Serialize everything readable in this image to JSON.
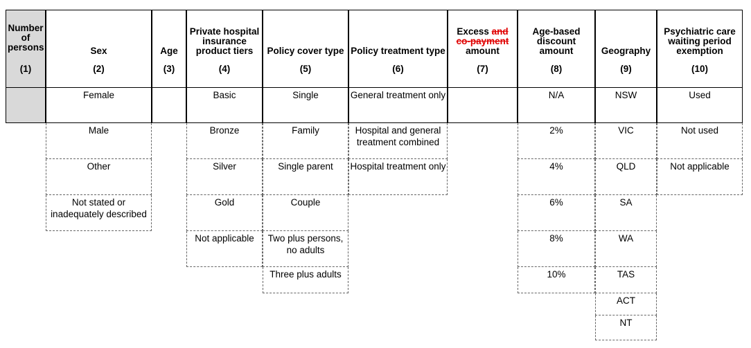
{
  "columns": [
    {
      "title": "Number of persons",
      "number": "(1)"
    },
    {
      "title": "Sex",
      "number": "(2)"
    },
    {
      "title": "Age",
      "number": "(3)"
    },
    {
      "title": "Private hospital insurance product tiers",
      "number": "(4)"
    },
    {
      "title": "Policy cover type",
      "number": "(5)"
    },
    {
      "title": "Policy treatment type",
      "number": "(6)"
    },
    {
      "title_pre": "Excess ",
      "title_strike": "and co-payment",
      "title_post": " amount",
      "number": "(7)"
    },
    {
      "title": "Age-based discount amount",
      "number": "(8)"
    },
    {
      "title": "Geography",
      "number": "(9)"
    },
    {
      "title": "Psychiatric care waiting period exemption",
      "number": "(10)"
    }
  ],
  "values": {
    "sex": [
      "Female",
      "Male",
      "Other",
      "Not stated or inadequately described"
    ],
    "tiers": [
      "Basic",
      "Bronze",
      "Silver",
      "Gold",
      "Not applicable"
    ],
    "cover": [
      "Single",
      "Family",
      "Single parent",
      "Couple",
      "Two plus persons, no adults",
      "Three plus adults"
    ],
    "treatment": [
      "General treatment only",
      "Hospital and general treatment combined",
      "Hospital treatment only"
    ],
    "discount": [
      "N/A",
      "2%",
      "4%",
      "6%",
      "8%",
      "10%"
    ],
    "geography": [
      "NSW",
      "VIC",
      "QLD",
      "SA",
      "WA",
      "TAS",
      "ACT",
      "NT"
    ],
    "psychiatric": [
      "Used",
      "Not used",
      "Not applicable"
    ]
  }
}
